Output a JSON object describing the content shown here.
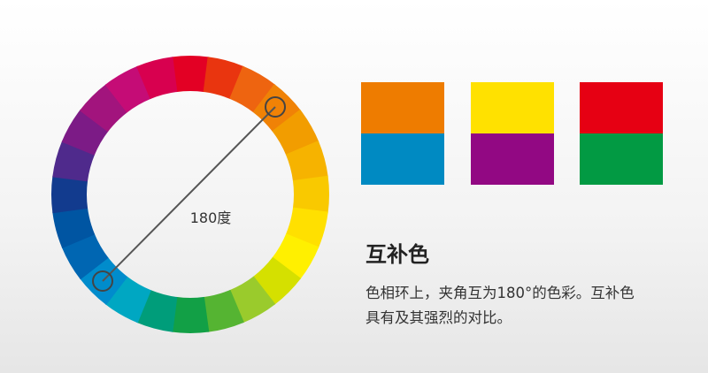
{
  "wheel": {
    "segment_colors": [
      "#e30024",
      "#e9350f",
      "#ee6410",
      "#f08206",
      "#f29d00",
      "#f6b300",
      "#f9c900",
      "#ffe000",
      "#fff000",
      "#d5e000",
      "#9acb2c",
      "#55b432",
      "#12a046",
      "#009d7a",
      "#00a7c2",
      "#008ccc",
      "#0066b2",
      "#0055a2",
      "#123b8e",
      "#4f2a8c",
      "#7c1b86",
      "#a2147d",
      "#c50c76",
      "#d8004f"
    ],
    "angle_label": "180度",
    "line_color": "#555555"
  },
  "swatches": [
    {
      "top": "#ee7c00",
      "bottom": "#008ac2"
    },
    {
      "top": "#ffe100",
      "bottom": "#920883"
    },
    {
      "top": "#e60013",
      "bottom": "#029a43"
    }
  ],
  "text": {
    "title": "互补色",
    "desc_line1": "色相环上，夹角互为180°的色彩。互补色",
    "desc_line2": "具有及其强烈的对比。"
  }
}
